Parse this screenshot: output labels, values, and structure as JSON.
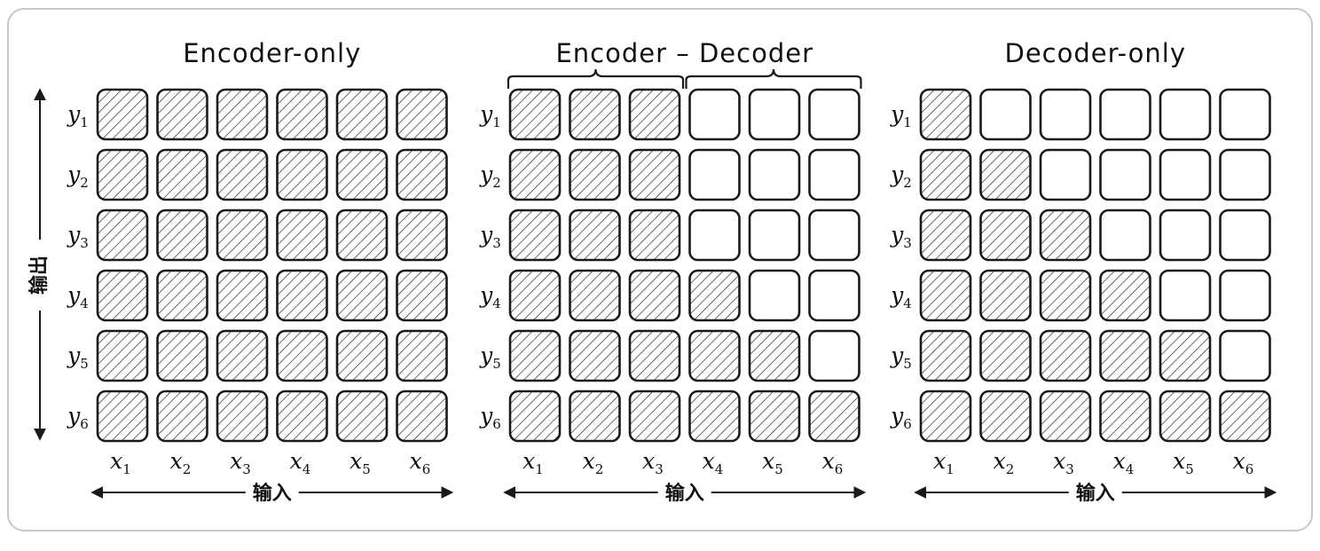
{
  "colors": {
    "ink": "#1a1a1a",
    "hatch": "#2b2b2b",
    "frame": "#c8c8c8",
    "background": "#ffffff"
  },
  "axes": {
    "input_label": "输入",
    "output_label": "输出"
  },
  "row_labels": [
    "y1",
    "y2",
    "y3",
    "y4",
    "y5",
    "y6"
  ],
  "col_labels": [
    "x1",
    "x2",
    "x3",
    "x4",
    "x5",
    "x6"
  ],
  "panels": [
    {
      "title": "Encoder-only",
      "mask": [
        [
          1,
          1,
          1,
          1,
          1,
          1
        ],
        [
          1,
          1,
          1,
          1,
          1,
          1
        ],
        [
          1,
          1,
          1,
          1,
          1,
          1
        ],
        [
          1,
          1,
          1,
          1,
          1,
          1
        ],
        [
          1,
          1,
          1,
          1,
          1,
          1
        ],
        [
          1,
          1,
          1,
          1,
          1,
          1
        ]
      ]
    },
    {
      "title": "Encoder – Decoder",
      "braces": true,
      "mask": [
        [
          1,
          1,
          1,
          0,
          0,
          0
        ],
        [
          1,
          1,
          1,
          0,
          0,
          0
        ],
        [
          1,
          1,
          1,
          0,
          0,
          0
        ],
        [
          1,
          1,
          1,
          1,
          0,
          0
        ],
        [
          1,
          1,
          1,
          1,
          1,
          0
        ],
        [
          1,
          1,
          1,
          1,
          1,
          1
        ]
      ]
    },
    {
      "title": "Decoder-only",
      "mask": [
        [
          1,
          0,
          0,
          0,
          0,
          0
        ],
        [
          1,
          1,
          0,
          0,
          0,
          0
        ],
        [
          1,
          1,
          1,
          0,
          0,
          0
        ],
        [
          1,
          1,
          1,
          1,
          0,
          0
        ],
        [
          1,
          1,
          1,
          1,
          1,
          0
        ],
        [
          1,
          1,
          1,
          1,
          1,
          1
        ]
      ]
    }
  ]
}
